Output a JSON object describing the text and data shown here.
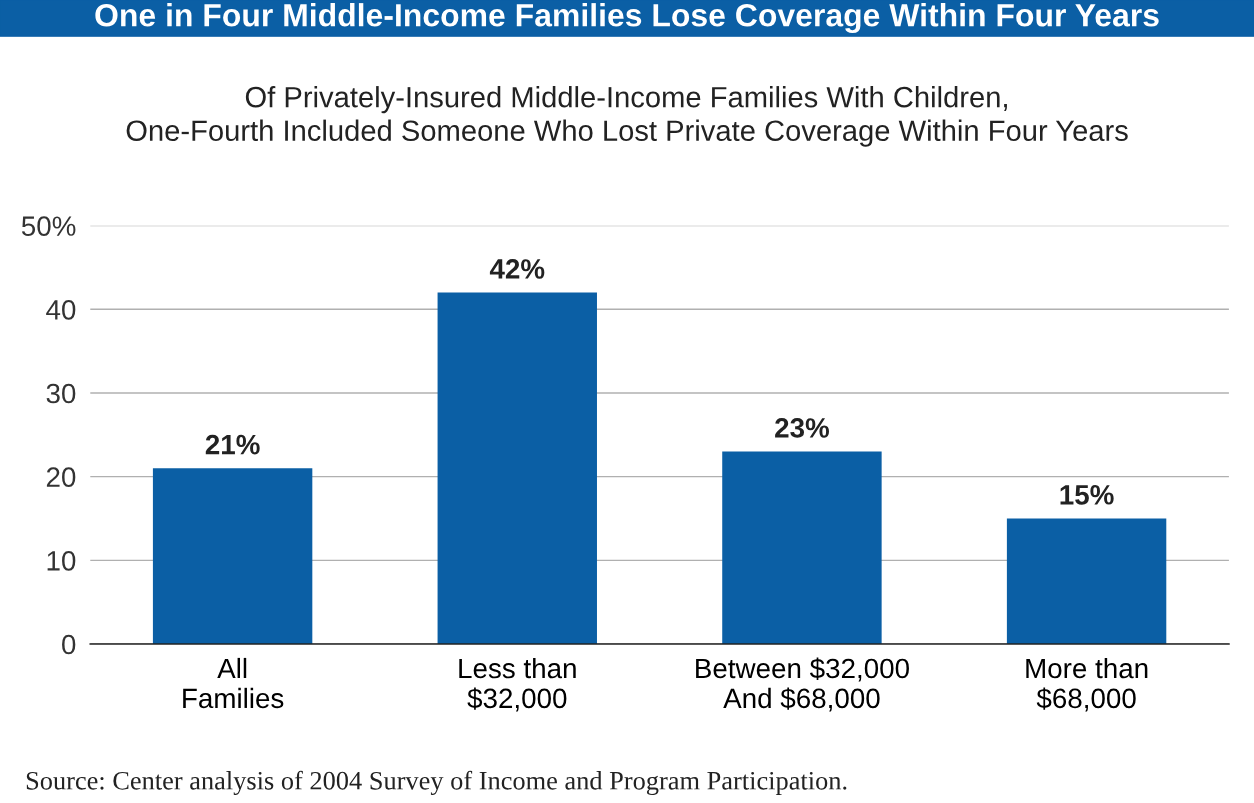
{
  "chart_data": {
    "type": "bar",
    "title": "One in Four Middle-Income Families Lose Coverage Within Four Years",
    "subtitle": "Of Privately-Insured Middle-Income Families With Children,\nOne-Fourth Included Someone Who Lost Private Coverage Within Four Years",
    "categories": [
      "All\nFamilies",
      "Less than\n$32,000",
      "Between $32,000\nAnd $68,000",
      "More than\n$68,000"
    ],
    "values": [
      21,
      42,
      23,
      15
    ],
    "value_labels": [
      "21%",
      "42%",
      "23%",
      "15%"
    ],
    "color": "#0b5fa5",
    "ylim": [
      0,
      50
    ],
    "yticks": [
      0,
      10,
      20,
      30,
      40,
      {
        "value": 50,
        "label": "50%"
      }
    ],
    "grid": "y",
    "annotations": [
      "Source: Center analysis of 2004 Survey of Income and Program Participation."
    ]
  }
}
